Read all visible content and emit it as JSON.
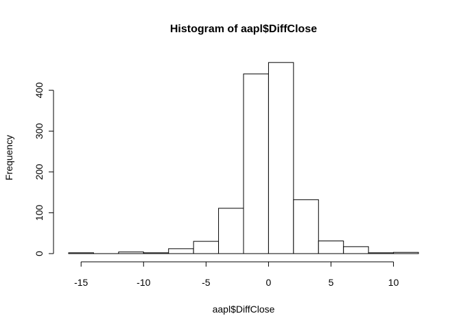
{
  "chart_data": {
    "type": "bar",
    "title": "Histogram of aapl$DiffClose",
    "xlabel": "aapl$DiffClose",
    "ylabel": "Frequency",
    "bins": [
      {
        "from": -16,
        "to": -14,
        "count": 2
      },
      {
        "from": -14,
        "to": -12,
        "count": 0
      },
      {
        "from": -12,
        "to": -10,
        "count": 4
      },
      {
        "from": -10,
        "to": -8,
        "count": 2
      },
      {
        "from": -8,
        "to": -6,
        "count": 12
      },
      {
        "from": -6,
        "to": -4,
        "count": 30
      },
      {
        "from": -4,
        "to": -2,
        "count": 111
      },
      {
        "from": -2,
        "to": 0,
        "count": 440
      },
      {
        "from": 0,
        "to": 2,
        "count": 468
      },
      {
        "from": 2,
        "to": 4,
        "count": 132
      },
      {
        "from": 4,
        "to": 6,
        "count": 31
      },
      {
        "from": 6,
        "to": 8,
        "count": 17
      },
      {
        "from": 8,
        "to": 10,
        "count": 2
      },
      {
        "from": 10,
        "to": 12,
        "count": 3
      }
    ],
    "x_ticks": [
      "-15",
      "-10",
      "-5",
      "0",
      "5",
      "10"
    ],
    "y_ticks": [
      "0",
      "100",
      "200",
      "300",
      "400"
    ],
    "xlim": [
      -16,
      12
    ],
    "ylim": [
      0,
      470
    ],
    "grid": false,
    "legend": "none",
    "colors": {
      "bar_fill": "#ffffff",
      "bar_stroke": "#000000"
    }
  }
}
